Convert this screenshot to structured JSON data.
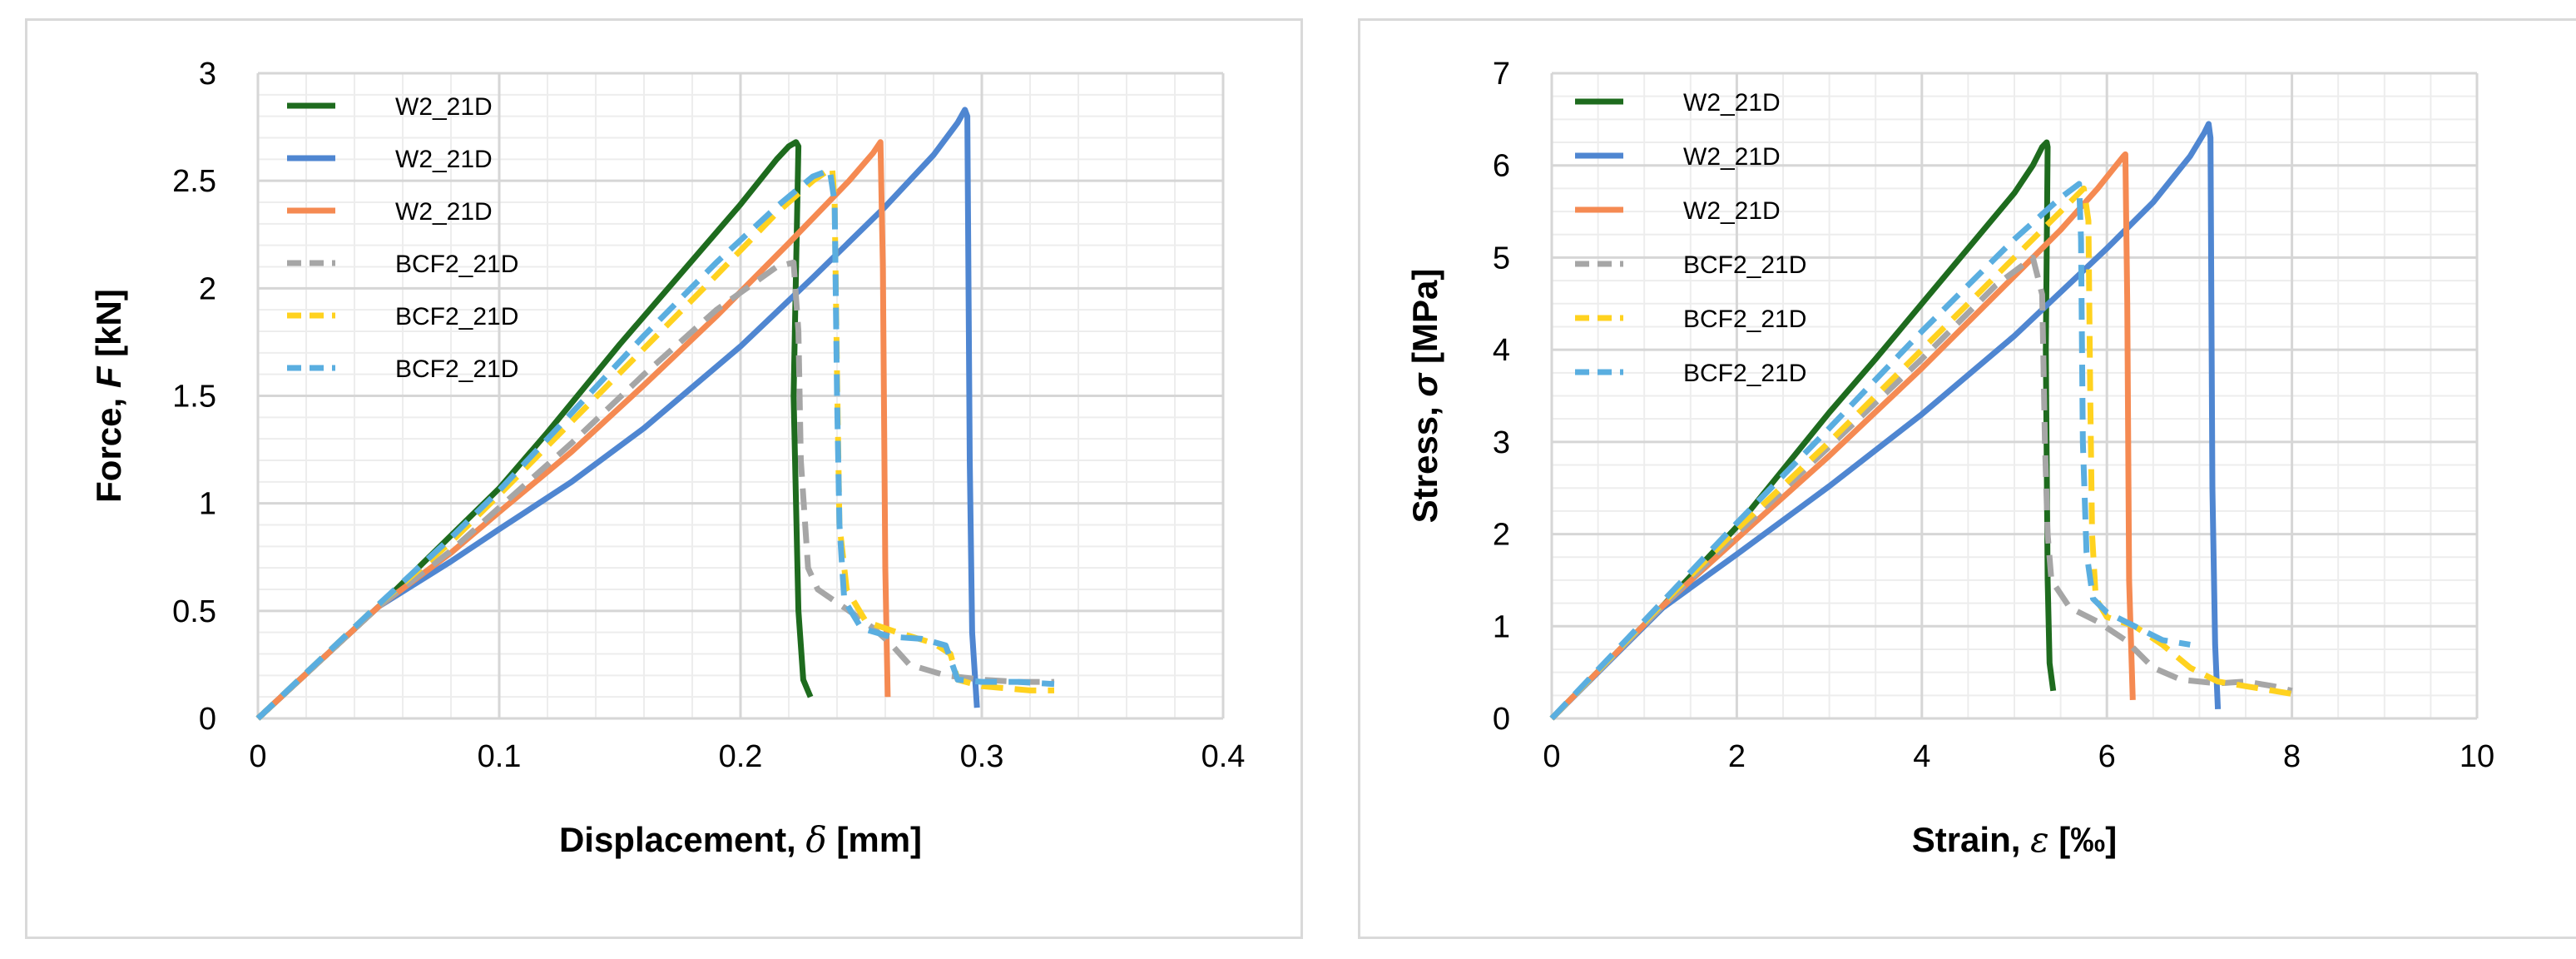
{
  "chart_data": [
    {
      "type": "line",
      "xlabel_prefix": "Displacement, ",
      "xlabel_symbol": "δ",
      "xlabel_suffix": "  [mm]",
      "ylabel_prefix": "Force, ",
      "ylabel_symbol": "F",
      "ylabel_suffix": " [kN]",
      "xlim": [
        0,
        0.4
      ],
      "ylim": [
        0,
        3
      ],
      "xticks": [
        0,
        0.1,
        0.2,
        0.3,
        0.4
      ],
      "xtick_labels": [
        "0",
        "0.1",
        "0.2",
        "0.3",
        "0.4"
      ],
      "yticks": [
        0,
        0.5,
        1,
        1.5,
        2,
        2.5,
        3
      ],
      "ytick_labels": [
        "0",
        "0.5",
        "1",
        "1.5",
        "2",
        "2.5",
        "3"
      ],
      "minor_x_step": 0.02,
      "minor_y_step": 0.1,
      "grid": true,
      "legend_position": "top-left",
      "series": [
        {
          "name": "W2_21D",
          "color": "#1e6b1e",
          "dash": false,
          "x": [
            0,
            0.05,
            0.08,
            0.1,
            0.12,
            0.15,
            0.18,
            0.2,
            0.215,
            0.22,
            0.223,
            0.224,
            0.222,
            0.224,
            0.226,
            0.229
          ],
          "y": [
            0,
            0.52,
            0.85,
            1.07,
            1.33,
            1.74,
            2.13,
            2.39,
            2.6,
            2.66,
            2.68,
            2.66,
            1.5,
            0.5,
            0.18,
            0.1
          ]
        },
        {
          "name": "W2_21D",
          "color": "#4f86d1",
          "dash": false,
          "x": [
            0,
            0.05,
            0.08,
            0.1,
            0.13,
            0.16,
            0.2,
            0.23,
            0.26,
            0.28,
            0.29,
            0.293,
            0.294,
            0.295,
            0.296,
            0.298
          ],
          "y": [
            0,
            0.52,
            0.73,
            0.88,
            1.1,
            1.35,
            1.73,
            2.05,
            2.38,
            2.62,
            2.77,
            2.83,
            2.8,
            1.2,
            0.4,
            0.05
          ]
        },
        {
          "name": "W2_21D",
          "color": "#f58a52",
          "dash": false,
          "x": [
            0,
            0.05,
            0.08,
            0.1,
            0.13,
            0.16,
            0.19,
            0.22,
            0.245,
            0.255,
            0.258,
            0.259,
            0.26,
            0.261
          ],
          "y": [
            0,
            0.52,
            0.77,
            0.96,
            1.24,
            1.55,
            1.87,
            2.21,
            2.5,
            2.63,
            2.68,
            2.1,
            0.7,
            0.1
          ]
        },
        {
          "name": "BCF2_21D",
          "color": "#a6a6a6",
          "dash": true,
          "x": [
            0,
            0.05,
            0.08,
            0.1,
            0.13,
            0.16,
            0.19,
            0.215,
            0.222,
            0.224,
            0.225,
            0.228,
            0.232,
            0.245,
            0.255,
            0.262,
            0.27,
            0.285,
            0.3,
            0.315,
            0.33
          ],
          "y": [
            0,
            0.52,
            0.78,
            0.98,
            1.28,
            1.6,
            1.9,
            2.1,
            2.12,
            1.8,
            1.2,
            0.7,
            0.6,
            0.5,
            0.42,
            0.35,
            0.25,
            0.2,
            0.18,
            0.17,
            0.17
          ]
        },
        {
          "name": "BCF2_21D",
          "color": "#ffd21f",
          "dash": true,
          "x": [
            0,
            0.05,
            0.08,
            0.1,
            0.13,
            0.16,
            0.19,
            0.215,
            0.23,
            0.238,
            0.239,
            0.24,
            0.241,
            0.244,
            0.252,
            0.265,
            0.28,
            0.287,
            0.29,
            0.3,
            0.31,
            0.32,
            0.33
          ],
          "y": [
            0,
            0.53,
            0.82,
            1.04,
            1.38,
            1.72,
            2.06,
            2.35,
            2.5,
            2.56,
            2.4,
            1.6,
            0.9,
            0.6,
            0.45,
            0.4,
            0.35,
            0.3,
            0.18,
            0.15,
            0.14,
            0.13,
            0.13
          ]
        },
        {
          "name": "BCF2_21D",
          "color": "#5aaee0",
          "dash": true,
          "x": [
            0,
            0.05,
            0.08,
            0.1,
            0.13,
            0.16,
            0.19,
            0.215,
            0.23,
            0.237,
            0.239,
            0.24,
            0.241,
            0.243,
            0.25,
            0.262,
            0.275,
            0.285,
            0.29,
            0.3,
            0.315,
            0.33
          ],
          "y": [
            0,
            0.53,
            0.84,
            1.06,
            1.42,
            1.78,
            2.12,
            2.38,
            2.52,
            2.55,
            2.4,
            1.5,
            0.9,
            0.55,
            0.42,
            0.38,
            0.37,
            0.34,
            0.18,
            0.17,
            0.17,
            0.16
          ]
        }
      ]
    },
    {
      "type": "line",
      "xlabel_prefix": "Strain, ",
      "xlabel_symbol": "ε",
      "xlabel_suffix": " [‰]",
      "ylabel_prefix": "Stress, ",
      "ylabel_symbol": "σ",
      "ylabel_suffix": "  [MPa]",
      "xlim": [
        0,
        10
      ],
      "ylim": [
        0,
        7
      ],
      "xticks": [
        0,
        2,
        4,
        6,
        8,
        10
      ],
      "xtick_labels": [
        "0",
        "2",
        "4",
        "6",
        "8",
        "10"
      ],
      "yticks": [
        0,
        1,
        2,
        3,
        4,
        5,
        6,
        7
      ],
      "ytick_labels": [
        "0",
        "1",
        "2",
        "3",
        "4",
        "5",
        "6",
        "7"
      ],
      "minor_x_step": 0.5,
      "minor_y_step": 0.25,
      "grid": true,
      "legend_position": "top-left",
      "series": [
        {
          "name": "W2_21D",
          "color": "#1e6b1e",
          "dash": false,
          "x": [
            0,
            1.2,
            2,
            2.5,
            3,
            3.5,
            4,
            4.5,
            5,
            5.2,
            5.3,
            5.35,
            5.36,
            5.34,
            5.36,
            5.38,
            5.42
          ],
          "y": [
            0,
            1.22,
            2.08,
            2.7,
            3.32,
            3.9,
            4.5,
            5.1,
            5.7,
            6.0,
            6.2,
            6.25,
            6.2,
            4.0,
            1.5,
            0.6,
            0.3
          ]
        },
        {
          "name": "W2_21D",
          "color": "#4f86d1",
          "dash": false,
          "x": [
            0,
            1.2,
            2,
            3,
            4,
            5,
            6,
            6.5,
            6.9,
            7.05,
            7.1,
            7.12,
            7.14,
            7.17,
            7.2
          ],
          "y": [
            0,
            1.2,
            1.78,
            2.52,
            3.3,
            4.15,
            5.1,
            5.6,
            6.1,
            6.35,
            6.45,
            6.3,
            2.5,
            0.8,
            0.1
          ]
        },
        {
          "name": "W2_21D",
          "color": "#f58a52",
          "dash": false,
          "x": [
            0,
            1.2,
            2,
            3,
            4,
            5,
            5.5,
            5.9,
            6.1,
            6.18,
            6.2,
            6.22,
            6.24,
            6.28
          ],
          "y": [
            0,
            1.22,
            1.95,
            2.85,
            3.8,
            4.8,
            5.3,
            5.75,
            6.0,
            6.1,
            6.12,
            4.5,
            1.5,
            0.2
          ]
        },
        {
          "name": "BCF2_21D",
          "color": "#a6a6a6",
          "dash": true,
          "x": [
            0,
            1.2,
            2,
            3,
            4,
            4.8,
            5.2,
            5.3,
            5.33,
            5.36,
            5.4,
            5.6,
            5.9,
            6.2,
            6.5,
            6.8,
            7.2,
            7.5,
            7.8,
            8.0
          ],
          "y": [
            0,
            1.22,
            2.0,
            2.95,
            3.9,
            4.7,
            5.0,
            4.6,
            3.0,
            2.0,
            1.5,
            1.2,
            1.05,
            0.85,
            0.55,
            0.42,
            0.38,
            0.4,
            0.35,
            0.3
          ]
        },
        {
          "name": "BCF2_21D",
          "color": "#ffd21f",
          "dash": true,
          "x": [
            0,
            1.2,
            2,
            3,
            4,
            5,
            5.5,
            5.75,
            5.8,
            5.82,
            5.84,
            5.88,
            6.0,
            6.3,
            6.6,
            6.9,
            7.2,
            7.5,
            7.8,
            8.1
          ],
          "y": [
            0,
            1.25,
            2.05,
            3.0,
            4.0,
            5.0,
            5.5,
            5.75,
            5.4,
            3.5,
            2.0,
            1.3,
            1.1,
            1.0,
            0.8,
            0.55,
            0.4,
            0.35,
            0.3,
            0.25
          ]
        },
        {
          "name": "BCF2_21D",
          "color": "#5aaee0",
          "dash": true,
          "x": [
            0,
            1.2,
            2,
            3,
            4,
            5,
            5.5,
            5.7,
            5.72,
            5.74,
            5.78,
            5.85,
            6.0,
            6.3,
            6.6,
            6.9
          ],
          "y": [
            0,
            1.27,
            2.12,
            3.15,
            4.2,
            5.2,
            5.65,
            5.8,
            5.2,
            3.0,
            1.8,
            1.3,
            1.15,
            1.0,
            0.85,
            0.8
          ]
        }
      ]
    }
  ]
}
